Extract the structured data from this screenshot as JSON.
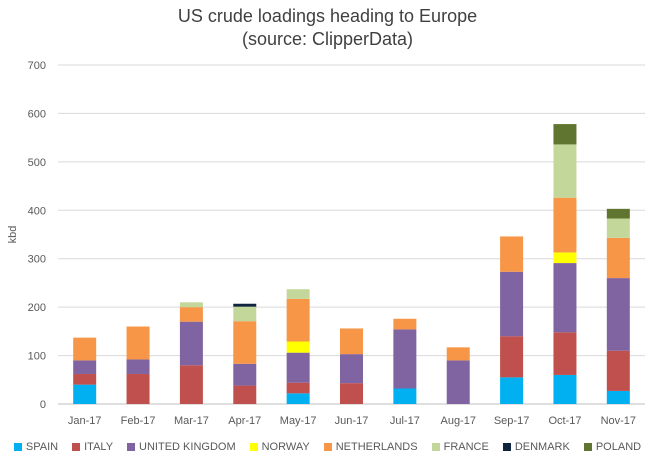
{
  "chart_data": {
    "type": "bar",
    "stacked": true,
    "title": "US crude loadings heading to Europe",
    "subtitle": "(source: ClipperData)",
    "ylabel": "kbd",
    "xlabel": "",
    "ylim": [
      0,
      700
    ],
    "yticks": [
      0,
      100,
      200,
      300,
      400,
      500,
      600,
      700
    ],
    "grid": true,
    "legend_position": "bottom",
    "categories": [
      "Jan-17",
      "Feb-17",
      "Mar-17",
      "Apr-17",
      "May-17",
      "Jun-17",
      "Jul-17",
      "Aug-17",
      "Sep-17",
      "Oct-17",
      "Nov-17"
    ],
    "series": [
      {
        "name": "SPAIN",
        "color": "#00b0f0",
        "values": [
          40,
          0,
          0,
          0,
          22,
          0,
          32,
          0,
          55,
          60,
          27
        ]
      },
      {
        "name": "ITALY",
        "color": "#c0504d",
        "values": [
          22,
          62,
          80,
          38,
          22,
          43,
          0,
          0,
          85,
          88,
          83
        ]
      },
      {
        "name": "UNITED KINGDOM",
        "color": "#8064a2",
        "values": [
          28,
          30,
          90,
          45,
          62,
          60,
          122,
          90,
          133,
          143,
          150
        ]
      },
      {
        "name": "NORWAY",
        "color": "#ffff00",
        "values": [
          0,
          0,
          0,
          0,
          23,
          0,
          0,
          0,
          0,
          22,
          0
        ]
      },
      {
        "name": "NETHERLANDS",
        "color": "#f79646",
        "values": [
          47,
          68,
          30,
          88,
          88,
          53,
          22,
          27,
          73,
          113,
          83
        ]
      },
      {
        "name": "FRANCE",
        "color": "#c4d79b",
        "values": [
          0,
          0,
          10,
          30,
          20,
          0,
          0,
          0,
          0,
          110,
          40
        ]
      },
      {
        "name": "DENMARK",
        "color": "#0f243e",
        "values": [
          0,
          0,
          0,
          6,
          0,
          0,
          0,
          0,
          0,
          0,
          0
        ]
      },
      {
        "name": "POLAND",
        "color": "#5f7530",
        "values": [
          0,
          0,
          0,
          0,
          0,
          0,
          0,
          0,
          0,
          42,
          20
        ]
      }
    ]
  }
}
